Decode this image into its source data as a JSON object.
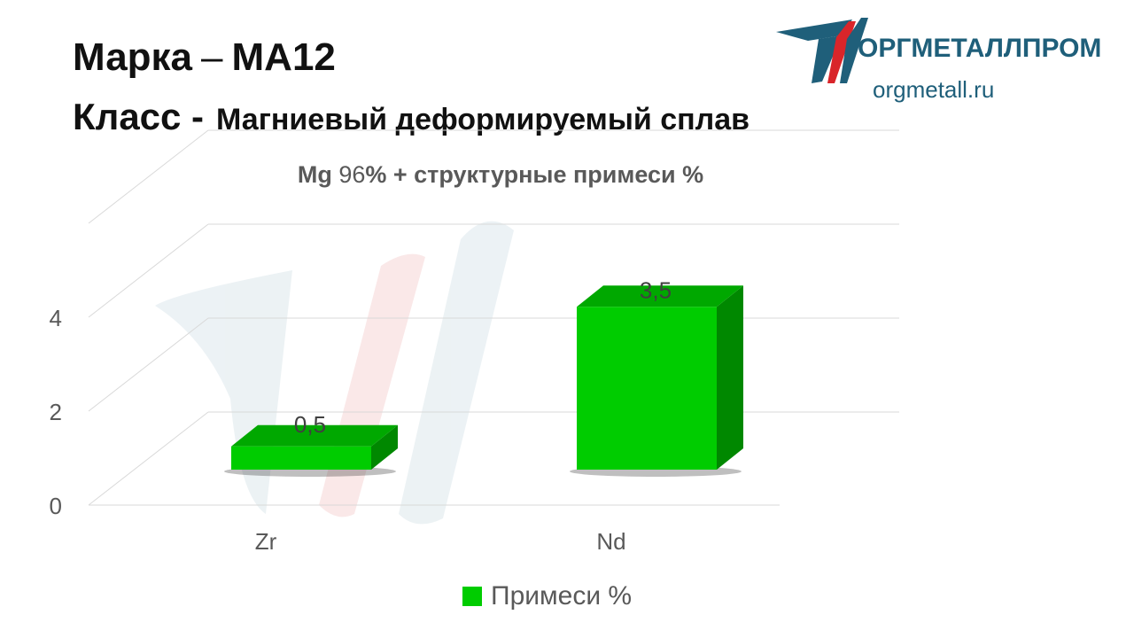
{
  "header": {
    "grade_label": "Марка",
    "grade_dash": "–",
    "grade_value": "МА12",
    "class_label": "Класс -",
    "class_value": "Магниевый деформируемый сплав"
  },
  "logo": {
    "name": "ОРГМЕТАЛЛПРОМ",
    "url": "orgmetall.ru",
    "colors": {
      "primary": "#1f5f7a",
      "accent": "#d9252a"
    }
  },
  "chart_title": {
    "base": "Mg",
    "base_pct": "96",
    "rest": "% + структурные  примеси %"
  },
  "chart_data": {
    "type": "bar",
    "style": "3d",
    "categories": [
      "Zr",
      "Nd"
    ],
    "series": [
      {
        "name": "Примеси %",
        "values": [
          0.5,
          3.5
        ],
        "color": "#00cc00"
      }
    ],
    "data_labels": [
      "0,5",
      "3,5"
    ],
    "y_ticks": [
      "0",
      "2",
      "4"
    ],
    "ylim": [
      0,
      6
    ],
    "grid": true,
    "legend_position": "bottom"
  },
  "legend": {
    "label": "Примеси %"
  }
}
